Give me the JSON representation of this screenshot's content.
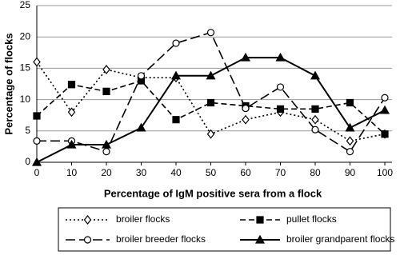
{
  "chart_data": {
    "type": "line",
    "x_label": "Percentage of IgM positive sera from a flock",
    "y_label": "Percentage of flocks",
    "x": [
      0,
      10,
      20,
      30,
      40,
      50,
      60,
      70,
      80,
      90,
      100
    ],
    "xlim": [
      0,
      100
    ],
    "xticks": [
      0,
      10,
      20,
      30,
      40,
      50,
      60,
      70,
      80,
      90,
      100
    ],
    "ylim": [
      0,
      25
    ],
    "yticks": [
      0,
      5,
      10,
      15,
      20,
      25
    ],
    "grid": true,
    "series": [
      {
        "name": "broiler flocks",
        "color": "#000000",
        "marker": "diamond",
        "dash": "dotted",
        "values": [
          16,
          8,
          14.8,
          13.5,
          13.5,
          4.5,
          6.8,
          8,
          6.8,
          3.4,
          4.5
        ]
      },
      {
        "name": "pullet flocks",
        "color": "#000000",
        "marker": "square",
        "dash": "dashed",
        "values": [
          7.4,
          12.4,
          11.3,
          13,
          6.8,
          9.5,
          9,
          8.5,
          8.5,
          9.5,
          4.5
        ]
      },
      {
        "name": "broiler breeder flocks",
        "color": "#000000",
        "marker": "circle",
        "dash": "longdash",
        "values": [
          3.4,
          3.4,
          1.7,
          13.8,
          19,
          20.7,
          8.6,
          12,
          5.2,
          1.7,
          10.3
        ]
      },
      {
        "name": "broiler grandparent flocks",
        "color": "#000000",
        "marker": "triangle",
        "dash": "solid",
        "values": [
          0,
          2.8,
          2.8,
          5.5,
          13.8,
          13.8,
          16.7,
          16.7,
          13.8,
          5.5,
          8.3
        ]
      }
    ]
  }
}
